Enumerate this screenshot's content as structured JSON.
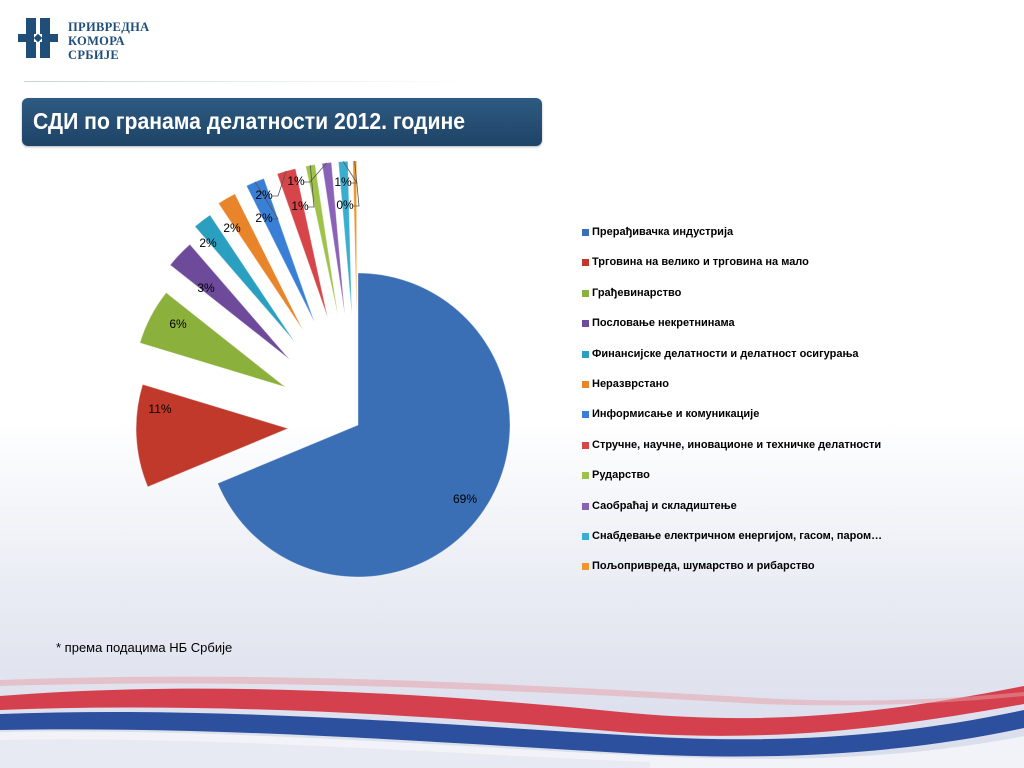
{
  "logo": {
    "line1": "ПРИВРЕДНА",
    "line2": "КОМОРА",
    "line3": "СРБИЈЕ"
  },
  "slide_title": "СДИ по гранама делатности 2012. године",
  "footnote": "*  према подацима НБ Србије",
  "colors": {
    "title_bg": "#24507a",
    "logo": "#1f4e79",
    "flag_red": "#c8102e",
    "flag_blue": "#1f3f8c"
  },
  "chart_data": {
    "type": "pie",
    "title": "",
    "legend_position": "right",
    "slices": [
      {
        "name": "Прерађивачка индустрија",
        "value": 69,
        "label": "69%",
        "color": "#3a6eb5"
      },
      {
        "name": "Трговина на велико и трговина на мало",
        "value": 11,
        "label": "11%",
        "color": "#c0392b"
      },
      {
        "name": "Грађевинарство",
        "value": 6,
        "label": "6%",
        "color": "#8cb03c"
      },
      {
        "name": "Пословање некретнинама",
        "value": 3,
        "label": "3%",
        "color": "#6e4a9a"
      },
      {
        "name": "Финансијске делатности и делатност осигурања",
        "value": 2,
        "label": "2%",
        "color": "#2b9fc0"
      },
      {
        "name": "Неразврстано",
        "value": 2,
        "label": "2%",
        "color": "#e8842a"
      },
      {
        "name": "Информисање и комуникације",
        "value": 2,
        "label": "2%",
        "color": "#3a7fd6"
      },
      {
        "name": "Стручне, научне, иновационе и техничке делатности",
        "value": 2,
        "label": "2%",
        "color": "#d6454a"
      },
      {
        "name": "Рударство",
        "value": 1,
        "label": "1%",
        "color": "#9fc24a"
      },
      {
        "name": "Саобраћај и складиштење",
        "value": 1,
        "label": "1%",
        "color": "#8a62b8"
      },
      {
        "name": "Снабдевање електричном енергијом, гасом, паром…",
        "value": 1,
        "label": "1%",
        "color": "#3aaed0"
      },
      {
        "name": "Пољопривреда, шумарство и рибарство",
        "value": 0.4,
        "label": "0%",
        "color": "#f0962f"
      }
    ]
  }
}
